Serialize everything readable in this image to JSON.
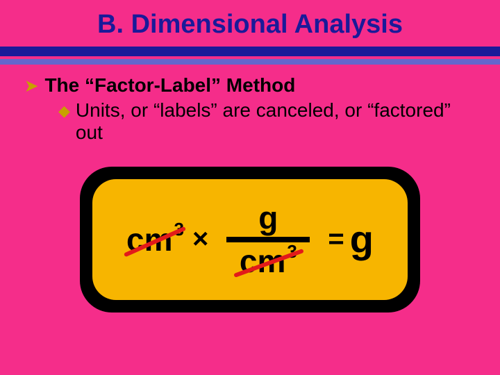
{
  "title": "B.  Dimensional Analysis",
  "title_color": "#1a1a99",
  "slide_bg": "#f52d8a",
  "rule1_color": "#1a1a99",
  "rule2_color": "#6666cc",
  "bullets": {
    "l1_marker": "➤",
    "l1_text": "The “Factor-Label” Method",
    "l2_marker": "◆",
    "l2_text": "Units, or “labels” are canceled, or “factored” out",
    "marker_color": "#c8a000",
    "text_color": "#000000"
  },
  "formula": {
    "container_bg": "#000000",
    "inner_bg": "#f7b500",
    "text_color": "#000000",
    "strike_color": "#e21a1a",
    "left_unit_base": "cm",
    "left_unit_exp": "3",
    "operator": "×",
    "numerator": "g",
    "denominator_base": "cm",
    "denominator_exp": "3",
    "equals": "=",
    "result": "g",
    "font_family": "Arial"
  }
}
